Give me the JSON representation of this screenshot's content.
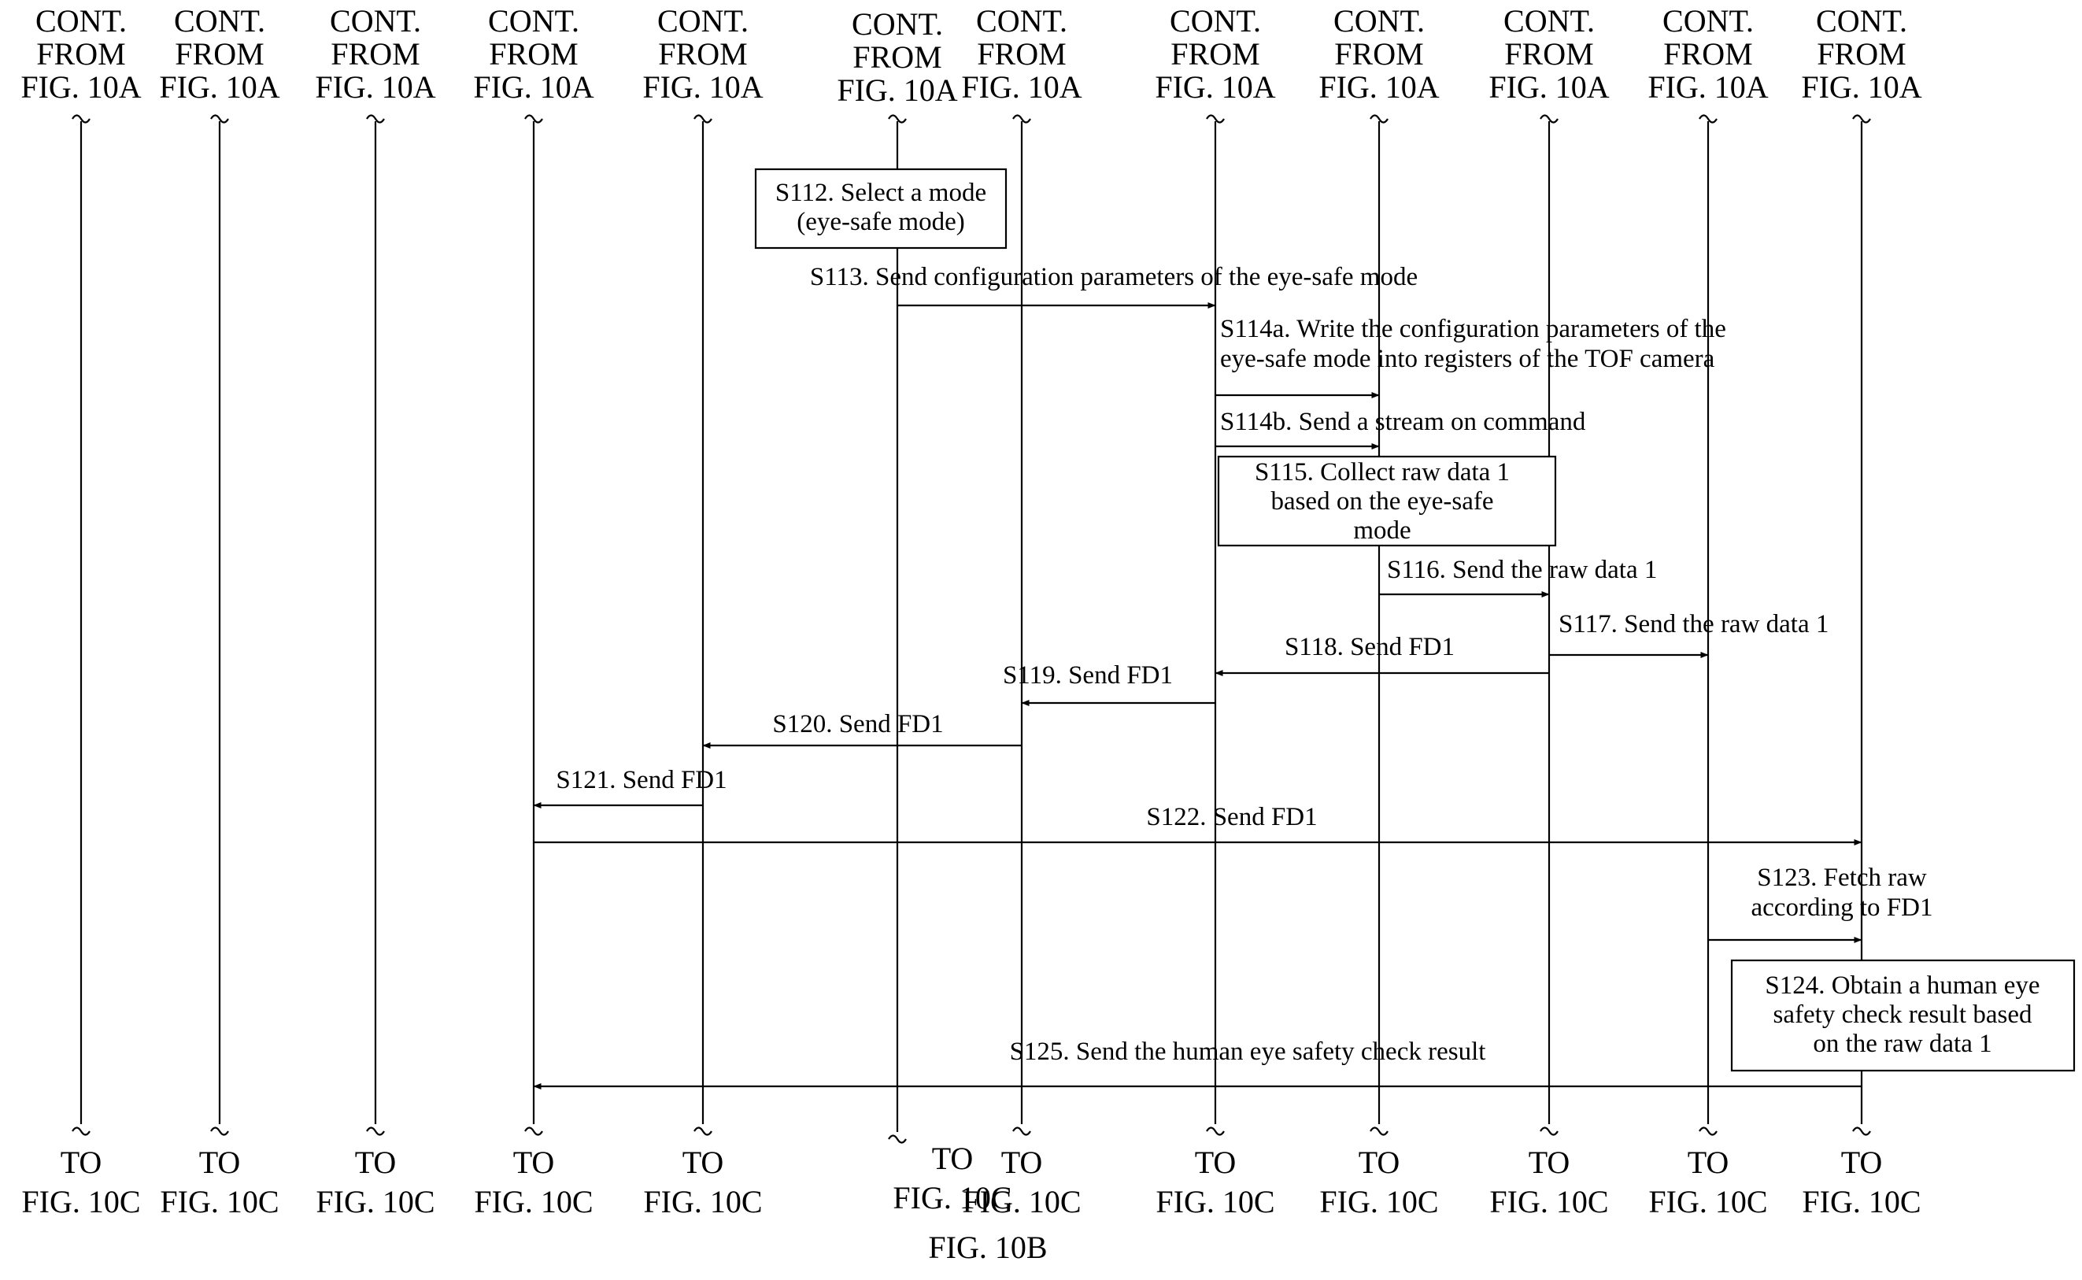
{
  "figure": {
    "caption": "FIG. 10B",
    "header_lines": [
      "CONT.",
      "FROM",
      "FIG. 10A"
    ],
    "footer_lines": [
      "TO",
      "FIG. 10C"
    ],
    "lifeline_count": 12
  },
  "process_boxes": [
    {
      "id": "S112",
      "lines": [
        "S112. Select a mode",
        "(eye-safe mode)"
      ]
    },
    {
      "id": "S115",
      "lines": [
        "S115. Collect raw data 1",
        "based on the eye-safe",
        "mode"
      ]
    },
    {
      "id": "S124",
      "lines": [
        "S124. Obtain a human eye",
        "safety check result based",
        "on the raw data 1"
      ]
    }
  ],
  "messages": [
    {
      "id": "S113",
      "from": 5,
      "to": 6,
      "lines": [
        "S113. Send configuration parameters of the eye-safe mode"
      ]
    },
    {
      "id": "S114a",
      "from": 6,
      "to": 7,
      "lines": [
        "S114a. Write the configuration parameters of the",
        "eye-safe mode into registers of the TOF camera"
      ]
    },
    {
      "id": "S114b",
      "from": 6,
      "to": 7,
      "lines": [
        "S114b. Send a stream on command"
      ]
    },
    {
      "id": "S116",
      "from": 7,
      "to": 8,
      "lines": [
        "S116. Send the raw data 1"
      ]
    },
    {
      "id": "S117",
      "from": 8,
      "to": 9,
      "lines": [
        "S117. Send the raw data 1"
      ]
    },
    {
      "id": "S118",
      "from": 8,
      "to": 6,
      "lines": [
        "S118. Send FD1"
      ]
    },
    {
      "id": "S119",
      "from": 6,
      "to": "5b",
      "lines": [
        "S119. Send FD1"
      ]
    },
    {
      "id": "S120",
      "from": "5b",
      "to": 4,
      "lines": [
        "S120. Send FD1"
      ]
    },
    {
      "id": "S121",
      "from": 4,
      "to": 3,
      "lines": [
        "S121. Send FD1"
      ]
    },
    {
      "id": "S122",
      "from": 3,
      "to": 10,
      "lines": [
        "S122. Send FD1"
      ]
    },
    {
      "id": "S123",
      "from": 9,
      "to": 10,
      "lines": [
        "S123. Fetch raw",
        "according to FD1"
      ]
    },
    {
      "id": "S125",
      "from": 10,
      "to": 3,
      "lines": [
        "S125. Send the human eye safety check result"
      ]
    }
  ]
}
